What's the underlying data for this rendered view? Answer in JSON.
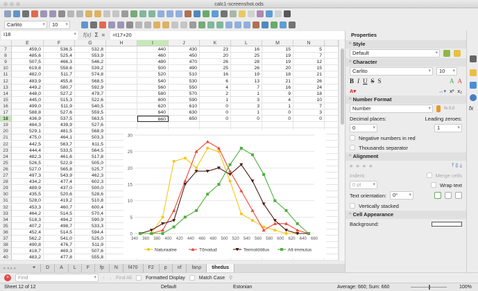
{
  "window": {
    "title": "calc1-screenshot.ods"
  },
  "toolbar": {
    "font_name": "Carlito",
    "font_size": "10",
    "icons1": [
      "new-icon",
      "open-icon",
      "save-icon",
      "export-pdf-icon",
      "print-icon",
      "print-preview-icon",
      "cut-icon",
      "copy-icon",
      "paste-icon",
      "clone-format-icon",
      "clear-format-icon",
      "undo-icon",
      "redo-icon",
      "find-replace-icon",
      "spelling-icon",
      "row-icon",
      "column-icon",
      "sort-icon",
      "sort-ascending-icon",
      "sort-descending-icon",
      "autofilter-icon",
      "image-icon",
      "chart-icon",
      "pivot-table-icon",
      "special-character-icon",
      "hyperlink-icon",
      "comment-icon",
      "header-footer-icon",
      "define-print-area-icon",
      "freeze-icon",
      "split-window-icon",
      "draw-functions-icon"
    ],
    "icons2": [
      "bold-icon",
      "italic-icon",
      "underline-icon",
      "font-color-icon",
      "highlight-icon",
      "align-left-icon",
      "align-center-icon",
      "align-right-icon",
      "wrap-icon",
      "merge-icon",
      "align-top-icon",
      "align-middle-icon",
      "align-bottom-icon",
      "currency-icon",
      "percent-icon",
      "number-icon",
      "date-icon",
      "add-decimal-icon",
      "delete-decimal-icon",
      "indent-icon",
      "outdent-icon",
      "borders-icon",
      "border-style-icon",
      "border-color-icon",
      "conditional-icon"
    ]
  },
  "formula": {
    "cell_ref": "I18",
    "fx": "f(x)",
    "sum": "Σ",
    "eq": "=",
    "content": "=I17+20"
  },
  "columns": [
    "E",
    "F",
    "G",
    "H",
    "I",
    "J",
    "K",
    "L",
    "M",
    "N",
    ""
  ],
  "active_column": "I",
  "active_row": "18",
  "rows": [
    {
      "n": "7",
      "E": "459,0",
      "F": "536,5",
      "G": "532,8",
      "I": "440",
      "J": "430",
      "K": "23",
      "L": "16",
      "M": "15",
      "N": "5"
    },
    {
      "n": "8",
      "E": "485,6",
      "F": "525,4",
      "G": "553,9",
      "I": "460",
      "J": "450",
      "K": "20",
      "L": "25",
      "M": "19",
      "N": "7"
    },
    {
      "n": "9",
      "E": "507,5",
      "F": "466,3",
      "G": "546,2",
      "I": "480",
      "J": "470",
      "K": "26",
      "L": "28",
      "M": "19",
      "N": "12"
    },
    {
      "n": "10",
      "E": "619,8",
      "F": "558,6",
      "G": "539,2",
      "I": "500",
      "J": "490",
      "K": "25",
      "L": "26",
      "M": "20",
      "N": "15"
    },
    {
      "n": "11",
      "E": "482,0",
      "F": "511,7",
      "G": "574,8",
      "I": "520",
      "J": "510",
      "K": "16",
      "L": "19",
      "M": "18",
      "N": "21"
    },
    {
      "n": "12",
      "E": "483,9",
      "F": "455,8",
      "G": "568,5",
      "I": "540",
      "J": "530",
      "K": "6",
      "L": "13",
      "M": "21",
      "N": "26"
    },
    {
      "n": "13",
      "E": "449,2",
      "F": "580,7",
      "G": "592,9",
      "I": "560",
      "J": "550",
      "K": "4",
      "L": "7",
      "M": "16",
      "N": "24"
    },
    {
      "n": "14",
      "E": "448,0",
      "F": "527,2",
      "G": "479,7",
      "I": "580",
      "J": "570",
      "K": "2",
      "L": "1",
      "M": "9",
      "N": "18"
    },
    {
      "n": "15",
      "E": "445,0",
      "F": "515,3",
      "G": "522,6",
      "I": "600",
      "J": "590",
      "K": "1",
      "L": "3",
      "M": "4",
      "N": "10"
    },
    {
      "n": "16",
      "E": "499,0",
      "F": "511,9",
      "G": "540,5",
      "I": "620",
      "J": "610",
      "K": "0",
      "L": "3",
      "M": "1",
      "N": "7"
    },
    {
      "n": "17",
      "E": "588,8",
      "F": "527,6",
      "G": "559,5",
      "I": "640",
      "J": "630",
      "K": "0",
      "L": "1",
      "M": "0",
      "N": "3"
    },
    {
      "n": "18",
      "E": "436,9",
      "F": "537,5",
      "G": "563,5",
      "I": "660",
      "J": "650",
      "K": "0",
      "L": "0",
      "M": "0",
      "N": "0"
    },
    {
      "n": "19",
      "E": "484,3",
      "F": "439,9",
      "G": "527,6"
    },
    {
      "n": "20",
      "E": "529,1",
      "F": "481,5",
      "G": "568,9"
    },
    {
      "n": "21",
      "E": "475,0",
      "F": "464,1",
      "G": "503,3"
    },
    {
      "n": "22",
      "E": "442,5",
      "F": "563,7",
      "G": "611,5"
    },
    {
      "n": "23",
      "E": "444,4",
      "F": "533,5",
      "G": "564,5"
    },
    {
      "n": "24",
      "E": "482,3",
      "F": "461,6",
      "G": "517,8"
    },
    {
      "n": "25",
      "E": "526,5",
      "F": "522,9",
      "G": "505,0"
    },
    {
      "n": "26",
      "E": "527,0",
      "F": "565,8",
      "G": "525,7"
    },
    {
      "n": "27",
      "E": "497,3",
      "F": "543,9",
      "G": "462,3"
    },
    {
      "n": "28",
      "E": "434,2",
      "F": "477,4",
      "G": "602,3"
    },
    {
      "n": "29",
      "E": "489,9",
      "F": "437,0",
      "G": "500,0"
    },
    {
      "n": "30",
      "E": "435,5",
      "F": "520,6",
      "G": "528,6"
    },
    {
      "n": "31",
      "E": "528,0",
      "F": "419,2",
      "G": "510,8"
    },
    {
      "n": "32",
      "E": "453,3",
      "F": "460,7",
      "G": "600,4"
    },
    {
      "n": "33",
      "E": "464,2",
      "F": "514,5",
      "G": "570,4"
    },
    {
      "n": "34",
      "E": "518,3",
      "F": "494,2",
      "G": "590,9"
    },
    {
      "n": "35",
      "E": "407,2",
      "F": "498,7",
      "G": "533,3"
    },
    {
      "n": "36",
      "E": "452,4",
      "F": "514,5",
      "G": "594,4"
    },
    {
      "n": "37",
      "E": "562,2",
      "F": "541,0",
      "G": "525,0"
    },
    {
      "n": "38",
      "E": "490,8",
      "F": "476,7",
      "G": "511,9"
    },
    {
      "n": "39",
      "E": "418,7",
      "F": "469,3",
      "G": "507,6"
    },
    {
      "n": "40",
      "E": "483,2",
      "F": "477,8",
      "G": "555,8"
    }
  ],
  "chart_data": {
    "type": "line",
    "x": [
      350,
      370,
      390,
      410,
      430,
      450,
      470,
      490,
      510,
      530,
      550,
      570,
      590,
      610,
      630,
      650
    ],
    "xlim": [
      340,
      660
    ],
    "ylim": [
      0,
      30
    ],
    "xticks": [
      340,
      360,
      380,
      400,
      420,
      440,
      460,
      480,
      500,
      520,
      540,
      560,
      580,
      600,
      620,
      640,
      660
    ],
    "yticks": [
      0,
      5,
      10,
      15,
      20,
      25,
      30
    ],
    "grid": "horizontal",
    "legend": "bottom",
    "series": [
      {
        "name": "Naturaalne",
        "color": "#f5c518",
        "marker": "circle",
        "values": [
          0,
          0,
          5,
          22,
          23,
          20,
          26,
          25,
          16,
          6,
          4,
          2,
          1,
          0,
          0,
          0
        ]
      },
      {
        "name": "Tõrvatud",
        "color": "#ee4433",
        "marker": "triangle",
        "values": [
          0,
          0,
          1,
          7,
          16,
          25,
          28,
          26,
          19,
          13,
          7,
          1,
          3,
          3,
          1,
          0
        ]
      },
      {
        "name": "Termotöötlus",
        "color": "#4a1a10",
        "marker": "triangle-down",
        "values": [
          0,
          1,
          3,
          4,
          15,
          19,
          19,
          20,
          18,
          21,
          16,
          9,
          4,
          1,
          0,
          0
        ]
      },
      {
        "name": "Alt-immutus",
        "color": "#4caf3a",
        "marker": "square",
        "values": [
          0,
          0,
          0,
          2,
          5,
          7,
          12,
          15,
          21,
          26,
          24,
          18,
          10,
          7,
          3,
          0
        ]
      }
    ]
  },
  "sheet_tabs": [
    "D",
    "A",
    "L",
    "F",
    "fp",
    "N",
    "f470",
    "F2",
    "p",
    "nf",
    "fanρ",
    "tihedus"
  ],
  "active_tab": "tihedus",
  "find": {
    "placeholder": "Find",
    "find_all": "Find All",
    "formatted_display": "Formatted Display",
    "match_case": "Match Case"
  },
  "status": {
    "sheet": "Sheet 12 of 12",
    "style": "Default",
    "language": "Estonian",
    "summary": "Average: 660; Sum: 660",
    "zoom": "100%",
    "zoom_level": 100
  },
  "sidebar": {
    "title": "Properties",
    "style": {
      "header": "Style",
      "value": "Default"
    },
    "character": {
      "header": "Character",
      "font": "Carlito",
      "size": "10",
      "superscript": "x²",
      "subscript": "x₂"
    },
    "number_format": {
      "header": "Number Format",
      "format": "Number",
      "decimal_label": "Decimal places:",
      "decimal_value": "0",
      "leading_label": "Leading zeroes:",
      "leading_value": "1",
      "negative_red": "Negative numbers in red",
      "thousands": "Thousands separator"
    },
    "alignment": {
      "header": "Alignment",
      "indent": "Indent:",
      "indent_value": "0 pt",
      "merge": "Merge cells",
      "wrap": "Wrap text",
      "orientation_label": "Text orientation:",
      "orientation_value": "0°",
      "stacked": "Vertically stacked"
    },
    "cell_appearance": {
      "header": "Cell Appearance",
      "background": "Background:"
    }
  }
}
